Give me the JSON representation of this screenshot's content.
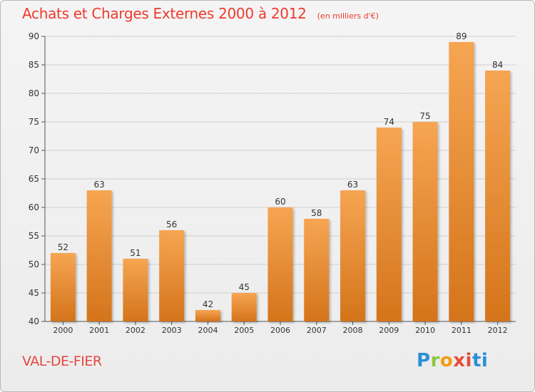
{
  "title": "Achats et Charges Externes 2000 à 2012",
  "subtitle": "(en milliers d'€)",
  "place": "VAL-DE-FIER",
  "logo": {
    "text": "Proxiti",
    "letters": [
      "P",
      "r",
      "o",
      "x",
      "i",
      "t",
      "i"
    ],
    "colors": [
      "#2b8fd6",
      "#8dc63f",
      "#f39c12",
      "#e74c3c",
      "#2b8fd6"
    ]
  },
  "colors": {
    "bar_light": "#f6a552",
    "bar_dark": "#d4741b",
    "title": "#ee3a2e",
    "axis": "#555555",
    "grid": "#cfcfcf"
  },
  "chart_data": {
    "type": "bar",
    "title": "Achats et Charges Externes 2000 à 2012",
    "subtitle": "(en milliers d'€)",
    "xlabel": "",
    "ylabel": "",
    "categories": [
      "2000",
      "2001",
      "2002",
      "2003",
      "2004",
      "2005",
      "2006",
      "2007",
      "2008",
      "2009",
      "2010",
      "2011",
      "2012"
    ],
    "values": [
      52,
      63,
      51,
      56,
      42,
      45,
      60,
      58,
      63,
      74,
      75,
      89,
      84
    ],
    "ylim": [
      40,
      90
    ],
    "yticks": [
      40,
      45,
      50,
      55,
      60,
      65,
      70,
      75,
      80,
      85,
      90
    ],
    "grid": true,
    "data_labels": true
  }
}
